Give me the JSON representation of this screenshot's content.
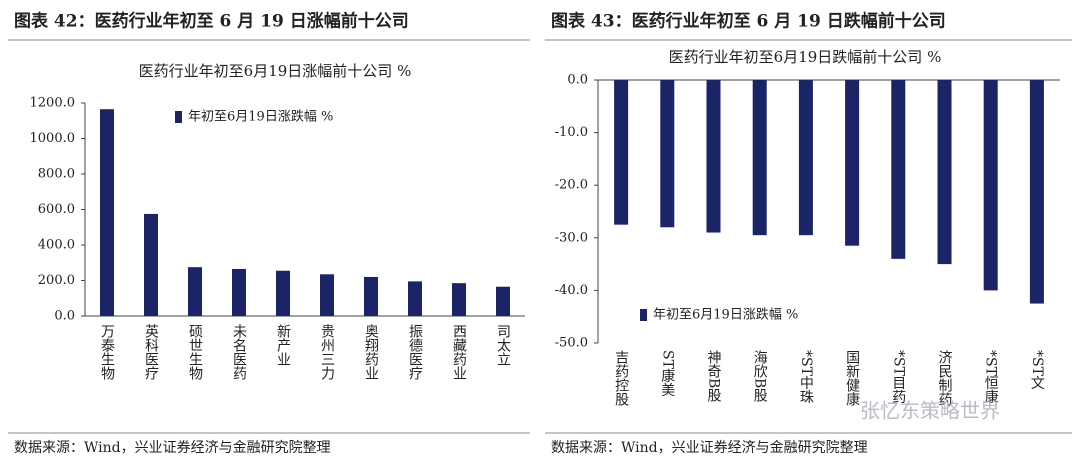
{
  "chart_data": [
    {
      "type": "bar",
      "title": "图表 42：医药行业年初至 6 月 19 日涨幅前十公司",
      "subtitle": "医药行业年初至6月19日涨幅前十公司 %",
      "categories": [
        "万泰生物",
        "英科医疗",
        "硕世生物",
        "未名医药",
        "新产业",
        "贵州三力",
        "奥翔药业",
        "振德医疗",
        "西藏药业",
        "司太立"
      ],
      "series": [
        {
          "name": "年初至6月19日涨跌幅 %",
          "color": "#1a2466",
          "values": [
            1165,
            575,
            275,
            265,
            255,
            235,
            220,
            195,
            185,
            165
          ]
        }
      ],
      "ylim": [
        0,
        1200
      ],
      "yticks": [
        {
          "value": 0,
          "label": "0.0"
        },
        {
          "value": 200,
          "label": "200.0"
        },
        {
          "value": 400,
          "label": "400.0"
        },
        {
          "value": 600,
          "label": "600.0"
        },
        {
          "value": 800,
          "label": "800.0"
        },
        {
          "value": 1000,
          "label": "1000.0"
        },
        {
          "value": 1200,
          "label": "1200.0"
        }
      ],
      "legend": "top",
      "source": "数据来源：Wind，兴业证券经济与金融研究院整理"
    },
    {
      "type": "bar",
      "title": "图表 43：医药行业年初至 6 月 19 日跌幅前十公司",
      "subtitle": "医药行业年初至6月19日跌幅前十公司 %",
      "categories": [
        "吉药控股",
        "ST康美",
        "神奇B股",
        "海欣B股",
        "*ST中珠",
        "国新健康",
        "*ST目药",
        "济民制药",
        "*ST恒康",
        "*ST文"
      ],
      "series": [
        {
          "name": "年初至6月19日涨跌幅 %",
          "color": "#1a2466",
          "values": [
            -27.5,
            -28,
            -29,
            -29.5,
            -29.5,
            -31.5,
            -34,
            -35,
            -40,
            -42.5
          ]
        }
      ],
      "ylim": [
        -50,
        0
      ],
      "yticks": [
        {
          "value": 0,
          "label": "0.0"
        },
        {
          "value": -10,
          "label": "-10.0"
        },
        {
          "value": -20,
          "label": "-20.0"
        },
        {
          "value": -30,
          "label": "-30.0"
        },
        {
          "value": -40,
          "label": "-40.0"
        },
        {
          "value": -50,
          "label": "-50.0"
        }
      ],
      "legend": "bottom",
      "source": "数据来源：Wind，兴业证券经济与金融研究院整理",
      "watermark": "张忆东策略世界"
    }
  ]
}
